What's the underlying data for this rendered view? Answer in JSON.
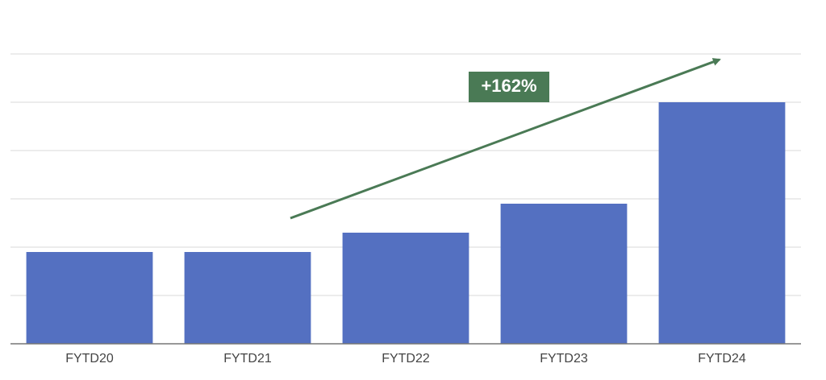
{
  "chart_data": {
    "type": "bar",
    "categories": [
      "FYTD20",
      "FYTD21",
      "FYTD22",
      "FYTD23",
      "FYTD24"
    ],
    "values": [
      1.9,
      1.9,
      2.3,
      2.9,
      5.0
    ],
    "color": "#5470c1",
    "ylim": [
      0,
      6.5
    ],
    "yticks": [
      1,
      2,
      3,
      4,
      5,
      6
    ],
    "grid": true,
    "annotation": "+162%"
  }
}
